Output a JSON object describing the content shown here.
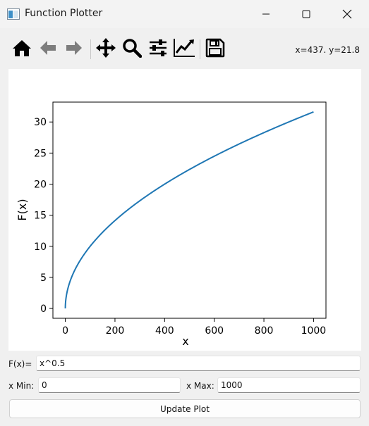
{
  "window": {
    "title": "Function Plotter",
    "icon": "app-window-icon",
    "controls": [
      "minimize-icon",
      "maximize-icon",
      "close-icon"
    ]
  },
  "toolbar": {
    "buttons": [
      "home-icon",
      "back-icon",
      "forward-icon",
      "pan-icon",
      "zoom-icon",
      "configure-subplots-icon",
      "edit-axis-icon",
      "save-icon"
    ],
    "coords": "x=437. y=21.8"
  },
  "plot": {
    "xlabel": "x",
    "ylabel": "F(x)",
    "line_color": "#1f77b4"
  },
  "chart_data": {
    "type": "line",
    "title": "",
    "xlabel": "x",
    "ylabel": "F(x)",
    "function": "x^0.5",
    "x_range": [
      0,
      1000
    ],
    "xlim": [
      -50,
      1050
    ],
    "ylim": [
      -1.58,
      33.2
    ],
    "xticks": [
      "0",
      "200",
      "400",
      "600",
      "800",
      "1000"
    ],
    "yticks": [
      "0",
      "5",
      "10",
      "15",
      "20",
      "25",
      "30"
    ],
    "grid": false,
    "series": [
      {
        "x": [
          0,
          10,
          25,
          50,
          100,
          150,
          200,
          300,
          400,
          500,
          600,
          700,
          800,
          900,
          1000
        ],
        "y": [
          0,
          3.16,
          5.0,
          7.07,
          10.0,
          12.25,
          14.14,
          17.32,
          20.0,
          22.36,
          24.49,
          26.46,
          28.28,
          30.0,
          31.62
        ]
      }
    ]
  },
  "form": {
    "fx_label": "F(x)=",
    "fx_value": "x^0.5",
    "xmin_label": "x Min:",
    "xmin_value": "0",
    "xmax_label": "x Max:",
    "xmax_value": "1000",
    "update_label": "Update Plot"
  }
}
